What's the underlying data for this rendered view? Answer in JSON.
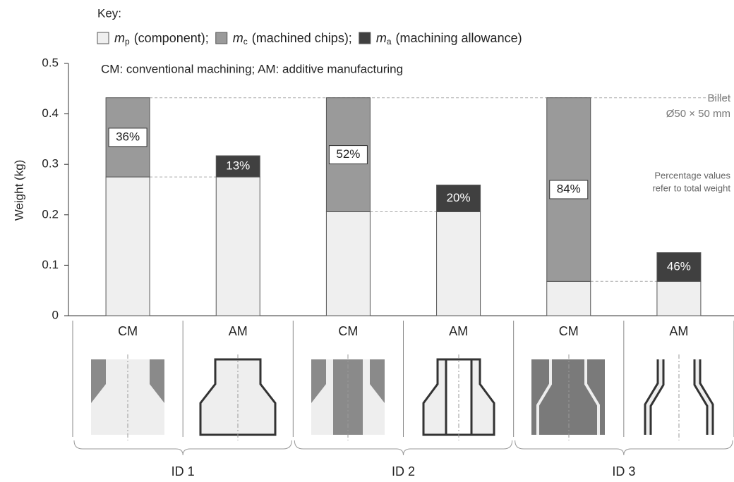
{
  "chart_data": {
    "type": "stacked_bar",
    "key_title": "Key:",
    "subtitle": "CM: conventional machining; AM: additive manufacturing",
    "ylabel": "Weight (kg)",
    "categories": [
      "CM",
      "AM",
      "CM",
      "AM",
      "CM",
      "AM"
    ],
    "groups": [
      "ID 1",
      "ID 2",
      "ID 3"
    ],
    "series": [
      {
        "symbol": "m",
        "subscript": "p",
        "name": "(component);",
        "color": "#efefef",
        "values": [
          0.275,
          0.275,
          0.206,
          0.206,
          0.068,
          0.068
        ]
      },
      {
        "symbol": "m",
        "subscript": "c",
        "name": "(machined chips);",
        "color": "#9a9a9a",
        "values": [
          0.157,
          null,
          0.226,
          null,
          0.364,
          null
        ]
      },
      {
        "symbol": "m",
        "subscript": "a",
        "name": "(machining allowance)",
        "color": "#404040",
        "values": [
          null,
          0.042,
          null,
          0.053,
          null,
          0.057
        ]
      }
    ],
    "percent_labels": [
      {
        "value": 36,
        "label": "36%"
      },
      {
        "value": 13,
        "label": "13%"
      },
      {
        "value": 52,
        "label": "52%"
      },
      {
        "value": 20,
        "label": "20%"
      },
      {
        "value": 84,
        "label": "84%"
      },
      {
        "value": 46,
        "label": "46%"
      }
    ],
    "annotations": {
      "billet": "Billet",
      "billet_size": "Ø50 × 50 mm",
      "note": [
        "Percentage values",
        "refer to total weight"
      ]
    },
    "ylim": [
      0,
      0.5
    ],
    "yticks": [
      0,
      0.1,
      0.2,
      0.3,
      0.4,
      0.5
    ]
  }
}
